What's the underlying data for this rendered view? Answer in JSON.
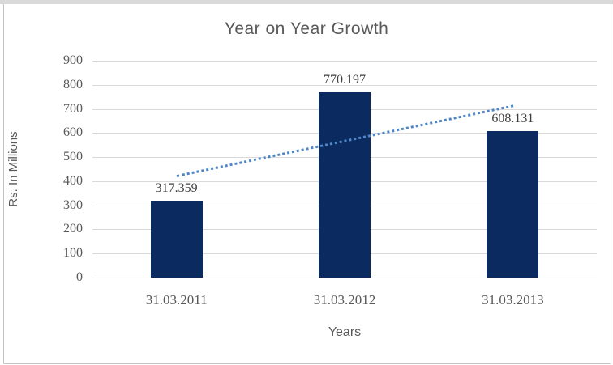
{
  "chart": {
    "title": "Year on Year Growth",
    "x_axis_title": "Years",
    "y_axis_title": "Rs. In Millions"
  },
  "chart_data": {
    "type": "bar",
    "title": "Year on Year Growth",
    "xlabel": "Years",
    "ylabel": "Rs. In Millions",
    "categories": [
      "31.03.2011",
      "31.03.2012",
      "31.03.2013"
    ],
    "values": [
      317.359,
      770.197,
      608.131
    ],
    "data_labels": [
      "317.359",
      "770.197",
      "608.131"
    ],
    "ylim": [
      0,
      900
    ],
    "ytick_step": 100,
    "grid": true,
    "legend": "none",
    "bar_color": "#0B2A60",
    "trendline": {
      "type": "linear",
      "style": "dotted",
      "color": "#4E86C8",
      "start_value": 419.8,
      "end_value": 710.6
    },
    "colors": {
      "text": "#595959",
      "data_label": "#3F3F3F",
      "gridline": "#D9D9D9",
      "frame_border": "#C3C3C3",
      "top_strip": "#D9D9D9"
    }
  }
}
